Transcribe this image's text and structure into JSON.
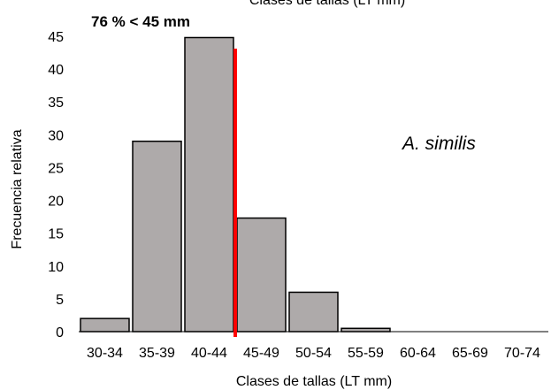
{
  "chart_data": {
    "type": "bar",
    "title": "Clases de tallas (LT mm)",
    "xlabel": "Clases de tallas (LT mm)",
    "ylabel": "Frecuencia relativa",
    "categories": [
      "30-34",
      "35-39",
      "40-44",
      "45-49",
      "50-54",
      "55-59",
      "60-64",
      "65-69",
      "70-74"
    ],
    "values": [
      2,
      29,
      44.8,
      17.3,
      6,
      0.5,
      0,
      0,
      0
    ],
    "ylim": [
      0,
      45
    ],
    "yticks": [
      0,
      5,
      10,
      15,
      20,
      25,
      30,
      35,
      40,
      45
    ],
    "grid": false,
    "bar_color": "#aeaaaa",
    "bar_edge_color": "#000000",
    "threshold": {
      "position_between": [
        "40-44",
        "45-49"
      ],
      "color": "#ff0000"
    },
    "annotations": {
      "percent_label": "76 % < 45 mm",
      "species_label": "A.   similis"
    }
  }
}
